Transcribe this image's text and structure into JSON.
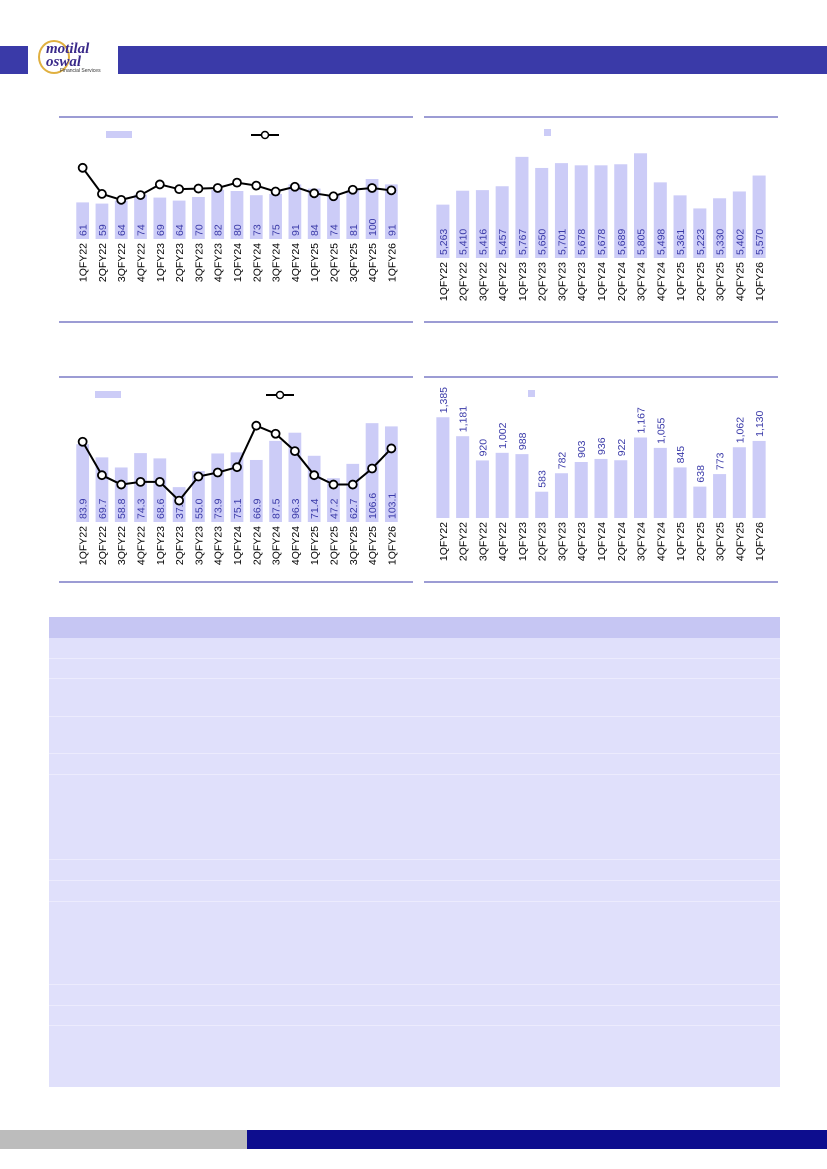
{
  "brand": {
    "logo_line1": "motilal",
    "logo_line2": "oswal",
    "logo_sub": "Financial Services",
    "primary_color": "#3a3aa8",
    "bar_color": "#ccccf7",
    "footer_blue": "#0d0d8e",
    "footer_gray": "#bcbcbc"
  },
  "chart_data": [
    {
      "type": "bar+line",
      "categories": [
        "1QFY22",
        "2QFY22",
        "3QFY22",
        "4QFY22",
        "1QFY23",
        "2QFY23",
        "3QFY23",
        "4QFY23",
        "1QFY24",
        "2QFY24",
        "3QFY24",
        "4QFY24",
        "1QFY25",
        "2QFY25",
        "3QFY25",
        "4QFY25",
        "1QFY26"
      ],
      "series": [
        {
          "kind": "bar",
          "values": [
            61,
            59,
            64,
            74,
            69,
            64,
            70,
            82,
            80,
            73,
            75,
            91,
            84,
            74,
            81,
            100,
            91
          ],
          "labels": [
            "61",
            "59",
            "64",
            "74",
            "69",
            "64",
            "70",
            "82",
            "80",
            "73",
            "75",
            "91",
            "84",
            "74",
            "81",
            "100",
            "91"
          ]
        },
        {
          "kind": "line",
          "values": [
            6.0,
            3.8,
            3.3,
            3.7,
            4.6,
            4.2,
            4.25,
            4.3,
            4.75,
            4.5,
            4.0,
            4.4,
            3.85,
            3.6,
            4.15,
            4.3,
            4.1
          ]
        }
      ],
      "legend": "top",
      "grid": false
    },
    {
      "type": "bar",
      "categories": [
        "1QFY22",
        "2QFY22",
        "3QFY22",
        "4QFY22",
        "1QFY23",
        "2QFY23",
        "3QFY23",
        "4QFY23",
        "1QFY24",
        "2QFY24",
        "3QFY24",
        "4QFY24",
        "1QFY25",
        "2QFY25",
        "3QFY25",
        "4QFY25",
        "1QFY26"
      ],
      "values": [
        5263,
        5410,
        5416,
        5457,
        5767,
        5650,
        5701,
        5678,
        5678,
        5689,
        5805,
        5498,
        5361,
        5223,
        5330,
        5402,
        5570
      ],
      "labels": [
        "5,263",
        "5,410",
        "5,416",
        "5,457",
        "5,767",
        "5,650",
        "5,701",
        "5,678",
        "5,678",
        "5,689",
        "5,805",
        "5,498",
        "5,361",
        "5,223",
        "5,330",
        "5,402",
        "5,570"
      ],
      "legend": "top",
      "grid": false
    },
    {
      "type": "bar+line",
      "categories": [
        "1QFY22",
        "2QFY22",
        "3QFY22",
        "4QFY22",
        "1QFY23",
        "2QFY23",
        "3QFY23",
        "4QFY23",
        "1QFY24",
        "2QFY24",
        "3QFY24",
        "4QFY24",
        "1QFY25",
        "2QFY25",
        "3QFY25",
        "4QFY25",
        "1QFY26"
      ],
      "series": [
        {
          "kind": "bar",
          "values": [
            83.9,
            69.7,
            58.8,
            74.3,
            68.6,
            37.6,
            55.0,
            73.9,
            75.1,
            66.9,
            87.5,
            96.3,
            71.4,
            47.2,
            62.7,
            106.6,
            103.1
          ],
          "labels": [
            "83.9",
            "69.7",
            "58.8",
            "74.3",
            "68.6",
            "37.6",
            "55.0",
            "73.9",
            "75.1",
            "66.9",
            "87.5",
            "96.3",
            "71.4",
            "47.2",
            "62.7",
            "106.6",
            "103.1"
          ]
        },
        {
          "kind": "line",
          "values": [
            8.0,
            5.5,
            4.8,
            5.0,
            5.0,
            3.6,
            5.4,
            5.7,
            6.1,
            9.2,
            8.6,
            7.3,
            5.5,
            4.8,
            4.8,
            6.0,
            7.5
          ]
        }
      ],
      "legend": "top",
      "grid": false
    },
    {
      "type": "bar",
      "categories": [
        "1QFY22",
        "2QFY22",
        "3QFY22",
        "4QFY22",
        "1QFY23",
        "2QFY23",
        "3QFY23",
        "4QFY23",
        "1QFY24",
        "2QFY24",
        "3QFY24",
        "4QFY24",
        "1QFY25",
        "2QFY25",
        "3QFY25",
        "4QFY25",
        "1QFY26"
      ],
      "values": [
        1385,
        1181,
        920,
        1002,
        988,
        583,
        782,
        903,
        936,
        922,
        1167,
        1055,
        845,
        638,
        773,
        1062,
        1130
      ],
      "labels": [
        "1,385",
        "1,181",
        "920",
        "1,002",
        "988",
        "583",
        "782",
        "903",
        "936",
        "922",
        "1,167",
        "1,055",
        "845",
        "638",
        "773",
        "1,062",
        "1,130"
      ],
      "legend": "top",
      "grid": false
    }
  ]
}
